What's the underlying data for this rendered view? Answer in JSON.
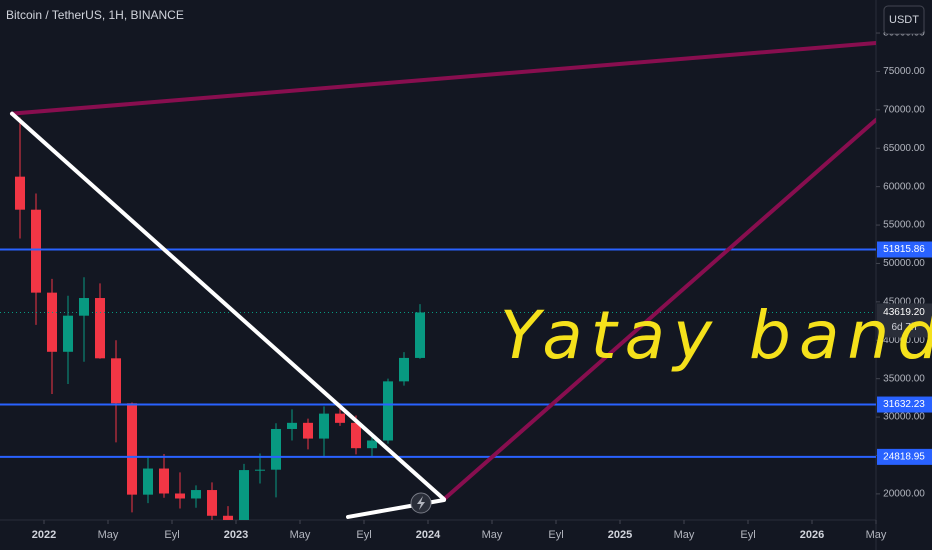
{
  "chart_data": {
    "type": "candlestick",
    "title": "Bitcoin / TetherUS, 1H, BINANCE",
    "currency": "USDT",
    "x": [
      "2021-11",
      "2021-12",
      "2022-01",
      "2022-02",
      "2022-03",
      "2022-04",
      "2022-05",
      "2022-06",
      "2022-07",
      "2022-08",
      "2022-09",
      "2022-10",
      "2022-11",
      "2022-12",
      "2023-01",
      "2023-02",
      "2023-03",
      "2023-04",
      "2023-05",
      "2023-06",
      "2023-07",
      "2023-08",
      "2023-09",
      "2023-10",
      "2023-11",
      "2023-12"
    ],
    "open": [
      61300,
      57000,
      46200,
      38500,
      43200,
      45500,
      37650,
      31800,
      19900,
      23300,
      20050,
      19400,
      20500,
      17150,
      16550,
      23100,
      23150,
      28450,
      29250,
      27200,
      30450,
      29250,
      25950,
      26950,
      34650,
      37700
    ],
    "high": [
      69000,
      59100,
      48000,
      45800,
      48200,
      47400,
      40000,
      31900,
      24700,
      25200,
      22800,
      21100,
      21500,
      18400,
      23900,
      25250,
      29200,
      31000,
      29800,
      31400,
      31800,
      30200,
      27500,
      35000,
      38450,
      44700
    ],
    "low": [
      53250,
      42000,
      33000,
      34300,
      37200,
      37600,
      26700,
      17600,
      18800,
      19500,
      18100,
      18200,
      15500,
      16300,
      16500,
      21350,
      19550,
      26950,
      25800,
      24800,
      28850,
      25150,
      24900,
      26550,
      34100,
      37600
    ],
    "close": [
      57000,
      46200,
      38500,
      43200,
      45500,
      37650,
      31800,
      19900,
      23300,
      20050,
      19400,
      20500,
      17150,
      16550,
      23100,
      23150,
      28450,
      29250,
      27200,
      30450,
      29250,
      25950,
      26950,
      34650,
      37700,
      43619.2
    ],
    "up_color": "#089981",
    "down_color": "#f23645",
    "xlim": [
      "2021-10",
      "2026-06"
    ],
    "xticks": [
      {
        "value": "2022-01",
        "label": "2022"
      },
      {
        "value": "2022-05",
        "label": "May"
      },
      {
        "value": "2022-09",
        "label": "Eyl"
      },
      {
        "value": "2023-01",
        "label": "2023"
      },
      {
        "value": "2023-05",
        "label": "May"
      },
      {
        "value": "2023-09",
        "label": "Eyl"
      },
      {
        "value": "2024-01",
        "label": "2024"
      },
      {
        "value": "2024-05",
        "label": "May"
      },
      {
        "value": "2024-09",
        "label": "Eyl"
      },
      {
        "value": "2025-01",
        "label": "2025"
      },
      {
        "value": "2025-05",
        "label": "May"
      },
      {
        "value": "2025-09",
        "label": "Eyl"
      },
      {
        "value": "2026-01",
        "label": "2026"
      },
      {
        "value": "2026-05",
        "label": "May"
      }
    ],
    "ylim": [
      16600,
      84300
    ],
    "yticks": [
      {
        "value": 20000,
        "label": "20000.00"
      },
      {
        "value": 25000,
        "label": "25000.00"
      },
      {
        "value": 30000,
        "label": "30000.00"
      },
      {
        "value": 35000,
        "label": "35000.00"
      },
      {
        "value": 40000,
        "label": "40000.00"
      },
      {
        "value": 45000,
        "label": "45000.00"
      },
      {
        "value": 50000,
        "label": "50000.00"
      },
      {
        "value": 55000,
        "label": "55000.00"
      },
      {
        "value": 60000,
        "label": "60000.00"
      },
      {
        "value": 65000,
        "label": "65000.00"
      },
      {
        "value": 70000,
        "label": "70000.00"
      },
      {
        "value": 75000,
        "label": "75000.00"
      },
      {
        "value": 80000,
        "label": "80000.00"
      }
    ],
    "levels": {
      "values": [
        51815.86,
        31632.23,
        24818.95
      ],
      "color": "#2962ff"
    },
    "last_price": {
      "value": 43619.2,
      "label": "43619.20",
      "countdown": "6d 7h"
    },
    "trendlines": [
      {
        "color": "#880e4f",
        "x": [
          "2021-11",
          "2026-05"
        ],
        "values": [
          69500,
          78700
        ]
      },
      {
        "color": "#880e4f",
        "x": [
          "2024-02",
          "2026-05"
        ],
        "values": [
          19300,
          68700
        ]
      },
      {
        "color": "#ffffff",
        "x": [
          "2021-11",
          "2024-02"
        ],
        "values": [
          69500,
          19300
        ]
      },
      {
        "color": "#ffffff",
        "x": [
          "2023-08",
          "2024-02"
        ],
        "values": [
          17000,
          19200
        ]
      }
    ],
    "annotation": "Yatay band",
    "annotation_color": "#f5e11b"
  }
}
